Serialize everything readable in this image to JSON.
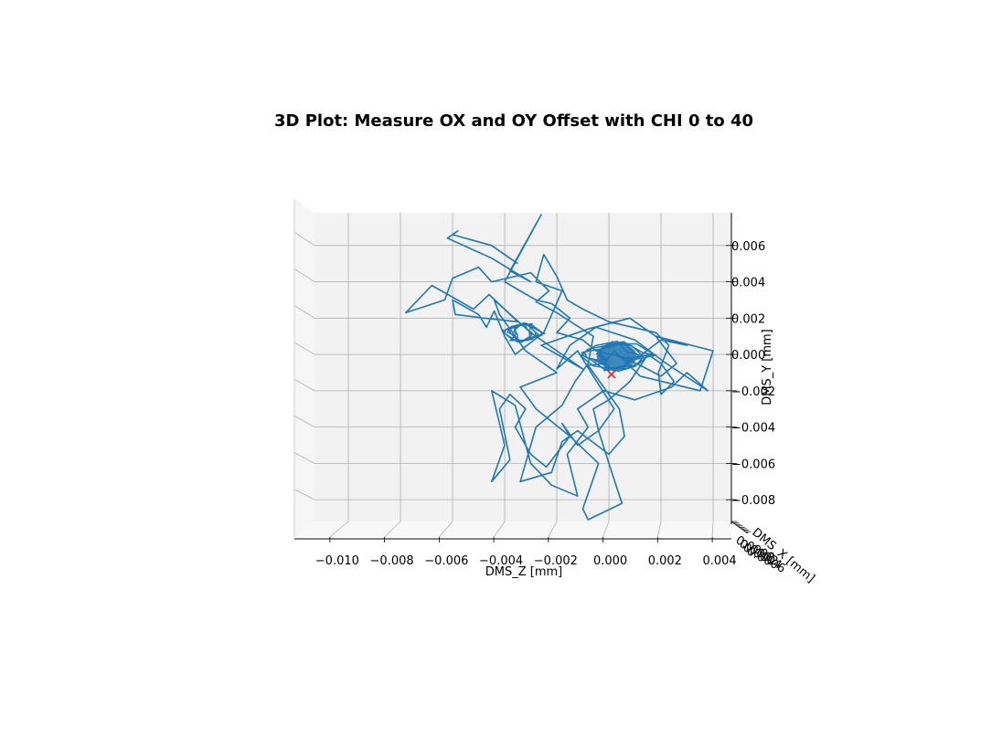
{
  "chart_data": {
    "type": "line",
    "projection": "3d",
    "title": "3D Plot: Measure OX and OY Offset with CHI 0 to 40",
    "xlabel": "DMS_Z [mm]",
    "ylabel": "DMS_Y [mm]",
    "zlabel": "DMS_X [mm]",
    "xlim": [
      -0.0113,
      0.0047
    ],
    "ylim": [
      -0.0092,
      0.0078
    ],
    "x_ticks": [
      "−0.010",
      "−0.008",
      "−0.006",
      "−0.004",
      "−0.002",
      "0.000",
      "0.002",
      "0.004"
    ],
    "x_tick_values": [
      -0.01,
      -0.008,
      -0.006,
      -0.004,
      -0.002,
      0.0,
      0.002,
      0.004
    ],
    "y_ticks": [
      "0.006",
      "0.004",
      "0.002",
      "0.000",
      "−0.002",
      "−0.004",
      "−0.006",
      "−0.008"
    ],
    "y_tick_values": [
      0.006,
      0.004,
      0.002,
      0.0,
      -0.002,
      -0.004,
      -0.006,
      -0.008
    ],
    "grid": true,
    "line_color": "#1f77b4",
    "marker_color": "#d62728",
    "marker": {
      "symbol": "x",
      "x": 0.0001,
      "y": -0.0011
    },
    "trajectory_x": [
      -0.0035,
      -0.0045,
      -0.006,
      -0.0058,
      -0.0062,
      -0.0045,
      -0.003,
      -0.0038,
      -0.0026,
      -0.004,
      -0.0034,
      -0.0028,
      -0.0022,
      -0.0015,
      -0.002,
      -0.001,
      -0.0005,
      0.001,
      0.002,
      0.003,
      0.0018,
      0.004,
      0.0035,
      0.0012,
      0.0002,
      -0.0002,
      -0.0008,
      -0.0002,
      0.0004,
      0.0006,
      0.0,
      -0.0012,
      -0.0018,
      -0.0022,
      -0.0034,
      -0.003,
      -0.0028,
      -0.0018,
      -0.0013,
      -0.0008,
      -0.0006,
      -0.002,
      -0.0028,
      -0.0023,
      -0.003,
      -0.0045,
      -0.005,
      -0.006,
      -0.0063,
      -0.0078,
      -0.0068,
      -0.0052,
      -0.0046,
      -0.0035,
      -0.0048,
      -0.0059,
      -0.006,
      -0.005,
      -0.0047,
      -0.0044,
      -0.004,
      -0.0036,
      -0.0025,
      -0.0018,
      -0.0028,
      -0.0025,
      -0.002,
      -0.0016,
      -0.001,
      0.0,
      0.0018,
      0.0023,
      0.0019,
      0.002,
      0.0025,
      0.002,
      0.0015,
      0.0008,
      0.0,
      -0.0006,
      -0.0004,
      -0.0012,
      -0.0018,
      -0.0015,
      -0.0024,
      -0.003,
      -0.0036,
      -0.0032,
      -0.0038,
      -0.0042,
      -0.0038,
      -0.0045,
      -0.004,
      -0.0045,
      -0.0036,
      -0.003,
      -0.0022,
      -0.0012,
      -0.0016,
      -0.0008,
      -0.0012,
      -0.0002,
      0.001,
      0.0024,
      0.003,
      0.0038,
      0.0022,
      0.001,
      -0.0005,
      -0.0015,
      -0.002,
      -0.0012,
      -0.0006,
      0.0002,
      -0.0004,
      0.0,
      0.0005,
      -0.0008,
      -0.001,
      -0.0004,
      -0.0015,
      -0.0028,
      -0.0034,
      -0.002,
      -0.0032,
      -0.0036,
      -0.0042,
      -0.0044,
      -0.003,
      -0.0018,
      -0.001,
      -0.0026,
      -0.0008,
      0.0008,
      0.0018,
      0.0026,
      0.002,
      0.0012,
      0.0002
    ],
    "trajectory_y": [
      0.005,
      0.006,
      0.0066,
      0.0068,
      0.0064,
      0.0053,
      0.004,
      0.0046,
      0.0077,
      0.004,
      0.0035,
      0.003,
      0.0028,
      0.002,
      0.0012,
      0.0008,
      0.0002,
      -0.0003,
      0.0008,
      0.0005,
      0.001,
      0.0002,
      -0.002,
      -0.0012,
      0.0002,
      -0.0005,
      -0.0006,
      -0.0018,
      -0.003,
      -0.0045,
      -0.0055,
      -0.0042,
      -0.0048,
      -0.0065,
      -0.007,
      -0.005,
      -0.004,
      -0.0028,
      -0.0015,
      -0.0005,
      0.001,
      0.0023,
      0.0029,
      0.0035,
      0.0045,
      0.004,
      0.0048,
      0.0042,
      0.003,
      0.0023,
      0.0038,
      0.0025,
      0.0033,
      0.0018,
      0.002,
      0.0022,
      0.003,
      0.0022,
      0.0015,
      0.0024,
      0.001,
      0.0,
      0.0012,
      0.0035,
      0.004,
      0.0055,
      0.0043,
      0.003,
      0.0025,
      0.0018,
      0.0012,
      0.0005,
      -0.001,
      -0.0022,
      -0.0015,
      -0.0005,
      0.0,
      -0.0015,
      -0.0025,
      -0.003,
      -0.0042,
      -0.005,
      -0.0038,
      -0.0045,
      -0.0062,
      -0.0055,
      -0.004,
      -0.003,
      -0.0022,
      -0.003,
      -0.0058,
      -0.007,
      -0.005,
      -0.002,
      -0.0028,
      -0.006,
      -0.0072,
      -0.0078,
      -0.0055,
      -0.004,
      -0.003,
      -0.002,
      -0.0025,
      -0.0018,
      -0.001,
      -0.002,
      -0.0005,
      0.0008,
      0.0015,
      0.0005,
      -0.0008,
      0.0002,
      -0.0012,
      -0.003,
      -0.0042,
      -0.006,
      -0.0082,
      -0.0091,
      -0.0085,
      -0.006,
      -0.0045,
      -0.003,
      -0.0018,
      -0.001,
      0.0002,
      0.001,
      0.0022,
      0.003,
      0.0012,
      0.0,
      -0.0008,
      0.0005,
      0.0014,
      0.002,
      0.001,
      -0.0005,
      -0.0012,
      -0.0006,
      0.0
    ]
  }
}
